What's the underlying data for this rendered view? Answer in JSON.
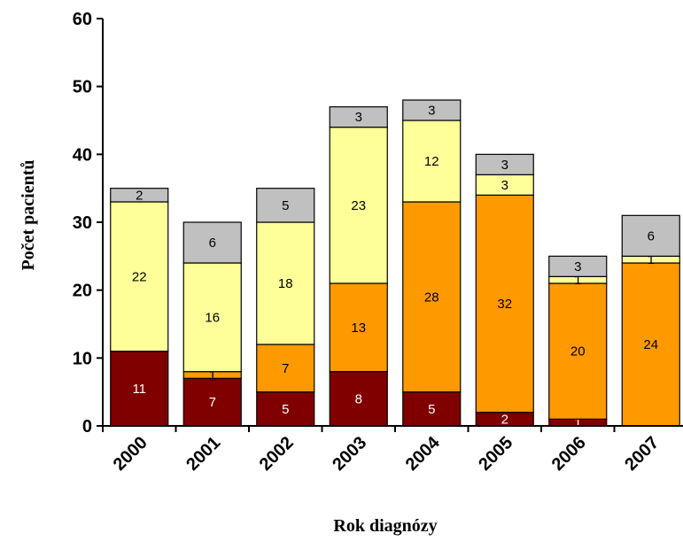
{
  "chart_data": {
    "type": "bar",
    "stacked": true,
    "xlabel": "Rok diagnózy",
    "ylabel": "Počet pacientů",
    "ylim": [
      0,
      60
    ],
    "yticks": [
      0,
      10,
      20,
      30,
      40,
      50,
      60
    ],
    "categories": [
      "2000",
      "2001",
      "2002",
      "2003",
      "2004",
      "2005",
      "2006",
      "2007"
    ],
    "series": [
      {
        "color": "#800000",
        "label_color": "#ffffff",
        "values": [
          11,
          7,
          5,
          8,
          5,
          2,
          1,
          0
        ]
      },
      {
        "color": "#ff9900",
        "label_color": "#000000",
        "values": [
          0,
          1,
          7,
          13,
          28,
          32,
          20,
          24
        ]
      },
      {
        "color": "#ffff99",
        "label_color": "#000000",
        "values": [
          22,
          16,
          18,
          23,
          12,
          3,
          1,
          1
        ]
      },
      {
        "color": "#c0c0c0",
        "label_color": "#000000",
        "values": [
          2,
          6,
          5,
          3,
          3,
          3,
          3,
          6
        ]
      }
    ]
  }
}
